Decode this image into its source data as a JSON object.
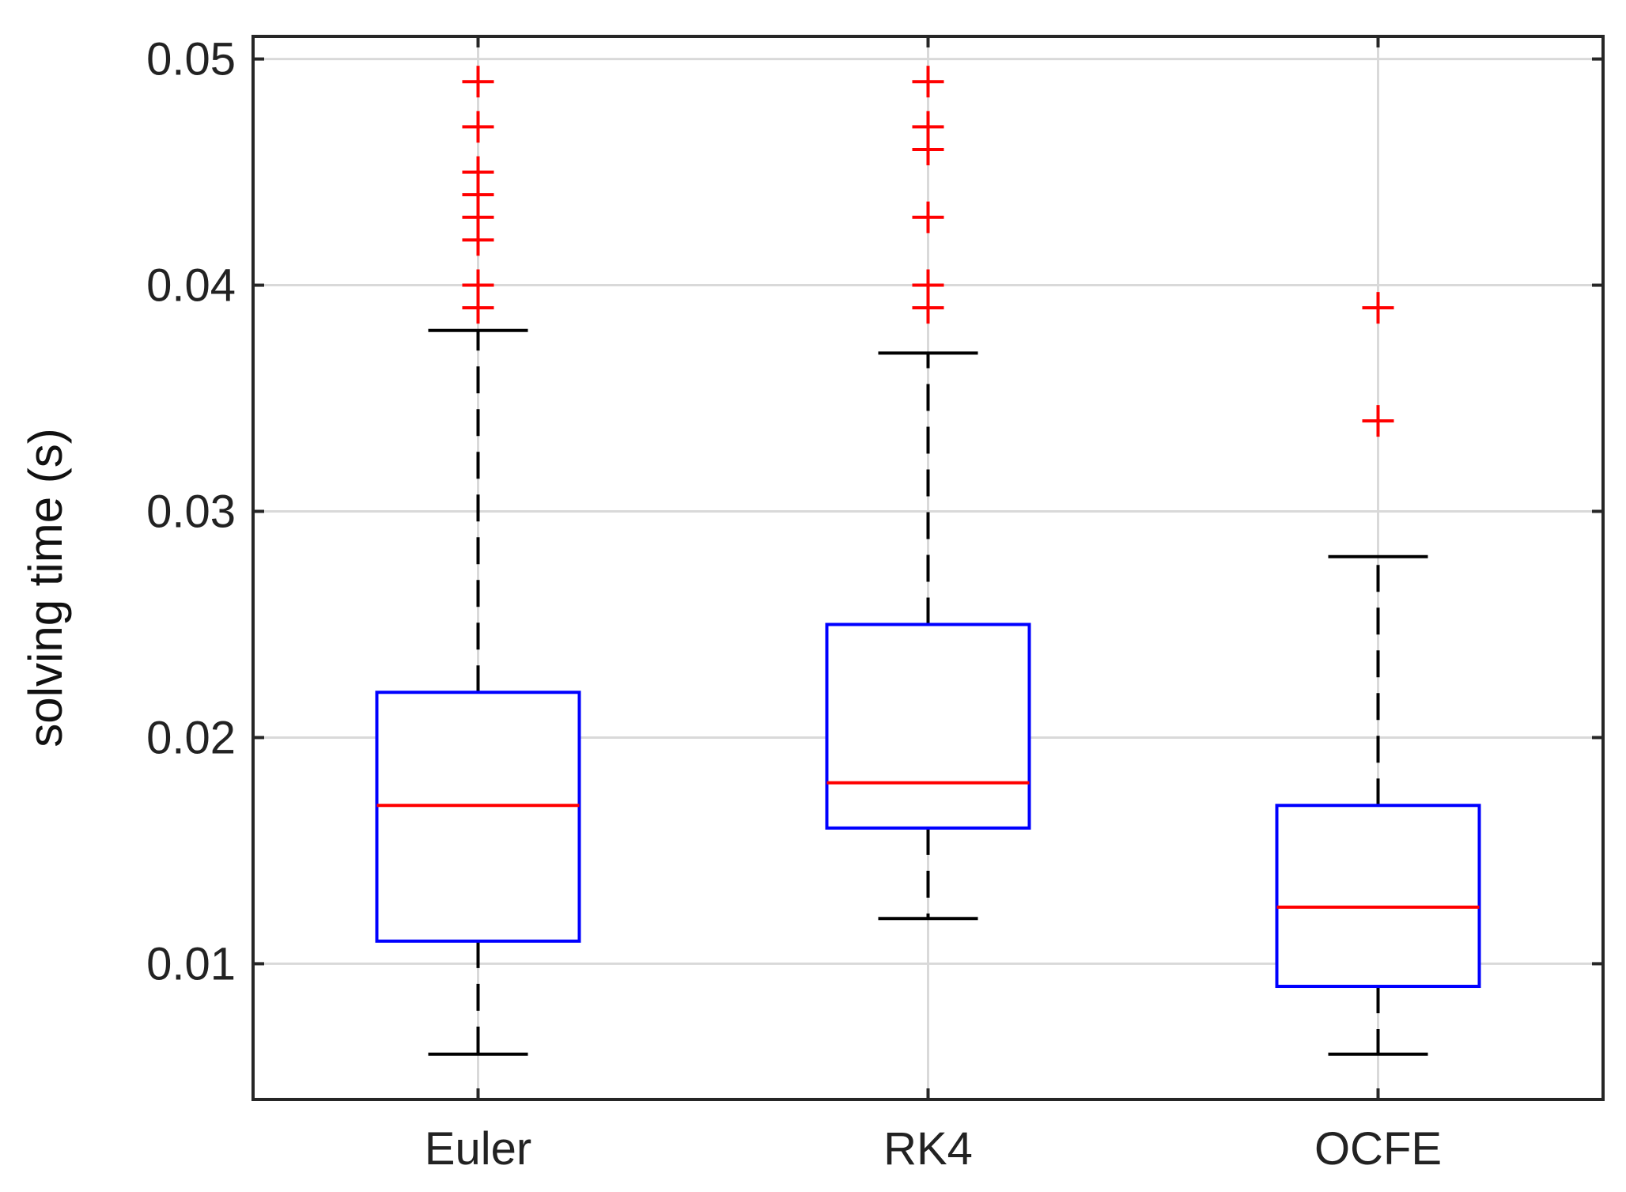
{
  "chart_data": {
    "type": "box",
    "title": "",
    "xlabel": "",
    "ylabel": "solving time (s)",
    "ylim": [
      0.004,
      0.051
    ],
    "yticks": [
      "0.01",
      "0.02",
      "0.03",
      "0.04",
      "0.05"
    ],
    "ytick_values": [
      0.01,
      0.02,
      0.03,
      0.04,
      0.05
    ],
    "grid": true,
    "categories": [
      "Euler",
      "RK4",
      "OCFE"
    ],
    "series": [
      {
        "name": "Euler",
        "whisker_low": 0.006,
        "q1": 0.011,
        "median": 0.017,
        "q3": 0.022,
        "whisker_high": 0.038,
        "outliers": [
          0.039,
          0.04,
          0.042,
          0.043,
          0.044,
          0.045,
          0.047,
          0.049
        ]
      },
      {
        "name": "RK4",
        "whisker_low": 0.012,
        "q1": 0.016,
        "median": 0.018,
        "q3": 0.025,
        "whisker_high": 0.037,
        "outliers": [
          0.039,
          0.04,
          0.043,
          0.046,
          0.047,
          0.049
        ]
      },
      {
        "name": "OCFE",
        "whisker_low": 0.006,
        "q1": 0.009,
        "median": 0.0125,
        "q3": 0.017,
        "whisker_high": 0.028,
        "outliers": [
          0.034,
          0.039
        ]
      }
    ],
    "colors": {
      "box": "#0000ff",
      "median": "#ff0000",
      "outlier": "#ff0000",
      "whisker": "#000000",
      "grid": "#d9d9d9",
      "axis": "#262626"
    }
  }
}
